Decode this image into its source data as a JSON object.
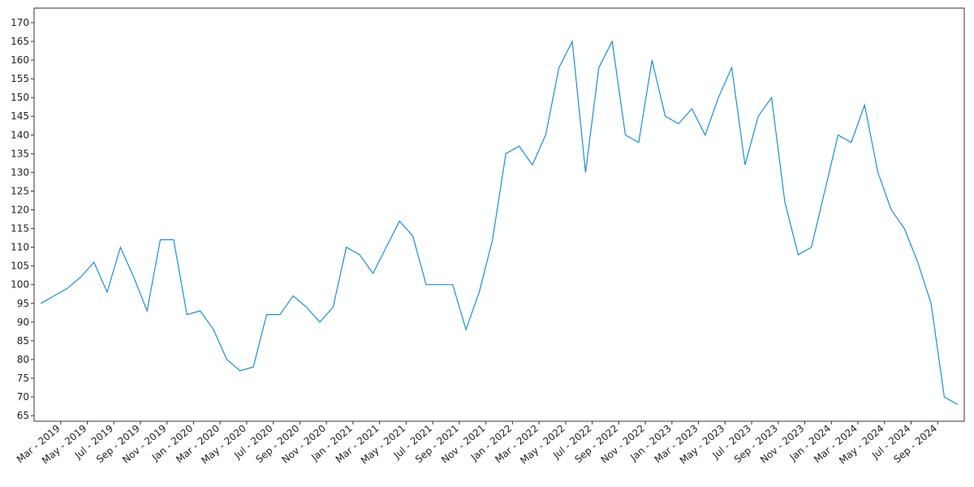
{
  "chart_data": {
    "type": "line",
    "color": "#1a8fd6",
    "x": [
      "2019-01",
      "2019-02",
      "2019-03",
      "2019-04",
      "2019-05",
      "2019-06",
      "2019-07",
      "2019-08",
      "2019-09",
      "2019-10",
      "2019-11",
      "2019-12",
      "2020-01",
      "2020-02",
      "2020-03",
      "2020-04",
      "2020-05",
      "2020-06",
      "2020-07",
      "2020-08",
      "2020-09",
      "2020-10",
      "2020-11",
      "2020-12",
      "2021-01",
      "2021-02",
      "2021-03",
      "2021-04",
      "2021-05",
      "2021-06",
      "2021-07",
      "2021-08",
      "2021-09",
      "2021-10",
      "2021-11",
      "2021-12",
      "2022-01",
      "2022-02",
      "2022-03",
      "2022-04",
      "2022-05",
      "2022-06",
      "2022-07",
      "2022-08",
      "2022-09",
      "2022-10",
      "2022-11",
      "2022-12",
      "2023-01",
      "2023-02",
      "2023-03",
      "2023-04",
      "2023-05",
      "2023-06",
      "2023-07",
      "2023-08",
      "2023-09",
      "2023-10",
      "2023-11",
      "2023-12",
      "2024-01",
      "2024-02",
      "2024-03",
      "2024-04",
      "2024-05",
      "2024-06",
      "2024-07",
      "2024-08",
      "2024-09",
      "2024-10"
    ],
    "values": [
      95,
      97,
      99,
      102,
      106,
      98,
      110,
      102,
      93,
      112,
      112,
      92,
      93,
      88,
      80,
      77,
      78,
      92,
      92,
      97,
      94,
      90,
      94,
      110,
      108,
      103,
      110,
      117,
      113,
      100,
      100,
      100,
      88,
      98,
      112,
      135,
      137,
      132,
      140,
      158,
      165,
      130,
      158,
      165,
      140,
      138,
      160,
      145,
      143,
      147,
      140,
      150,
      158,
      132,
      145,
      150,
      122,
      108,
      110,
      125,
      140,
      138,
      148,
      130,
      120,
      115,
      106,
      95,
      70,
      68
    ],
    "xlim": [
      "2019-01",
      "2024-10"
    ],
    "xticks": [
      {
        "value": "2019-03",
        "label": "Mar - 2019"
      },
      {
        "value": "2019-05",
        "label": "May - 2019"
      },
      {
        "value": "2019-07",
        "label": "Jul - 2019"
      },
      {
        "value": "2019-09",
        "label": "Sep - 2019"
      },
      {
        "value": "2019-11",
        "label": "Nov - 2019"
      },
      {
        "value": "2020-01",
        "label": "Jan - 2020"
      },
      {
        "value": "2020-03",
        "label": "Mar - 2020"
      },
      {
        "value": "2020-05",
        "label": "May - 2020"
      },
      {
        "value": "2020-07",
        "label": "Jul - 2020"
      },
      {
        "value": "2020-09",
        "label": "Sep - 2020"
      },
      {
        "value": "2020-11",
        "label": "Nov - 2020"
      },
      {
        "value": "2021-01",
        "label": "Jan - 2021"
      },
      {
        "value": "2021-03",
        "label": "Mar - 2021"
      },
      {
        "value": "2021-05",
        "label": "May - 2021"
      },
      {
        "value": "2021-07",
        "label": "Jul - 2021"
      },
      {
        "value": "2021-09",
        "label": "Sep - 2021"
      },
      {
        "value": "2021-11",
        "label": "Nov - 2021"
      },
      {
        "value": "2022-01",
        "label": "Jan - 2022"
      },
      {
        "value": "2022-03",
        "label": "Mar - 2022"
      },
      {
        "value": "2022-05",
        "label": "May - 2022"
      },
      {
        "value": "2022-07",
        "label": "Jul - 2022"
      },
      {
        "value": "2022-09",
        "label": "Sep - 2022"
      },
      {
        "value": "2022-11",
        "label": "Nov - 2022"
      },
      {
        "value": "2023-01",
        "label": "Jan - 2023"
      },
      {
        "value": "2023-03",
        "label": "Mar - 2023"
      },
      {
        "value": "2023-05",
        "label": "May - 2023"
      },
      {
        "value": "2023-07",
        "label": "Jul - 2023"
      },
      {
        "value": "2023-09",
        "label": "Sep - 2023"
      },
      {
        "value": "2023-11",
        "label": "Nov - 2023"
      },
      {
        "value": "2024-01",
        "label": "Jan - 2024"
      },
      {
        "value": "2024-03",
        "label": "Mar - 2024"
      },
      {
        "value": "2024-05",
        "label": "May - 2024"
      },
      {
        "value": "2024-07",
        "label": "Jul - 2024"
      },
      {
        "value": "2024-09",
        "label": "Sep - 2024"
      }
    ],
    "ylim": [
      63.5,
      173.9
    ],
    "yticks": [
      65,
      70,
      75,
      80,
      85,
      90,
      95,
      100,
      105,
      110,
      115,
      120,
      125,
      130,
      135,
      140,
      145,
      150,
      155,
      160,
      165,
      170
    ],
    "grid": false
  }
}
